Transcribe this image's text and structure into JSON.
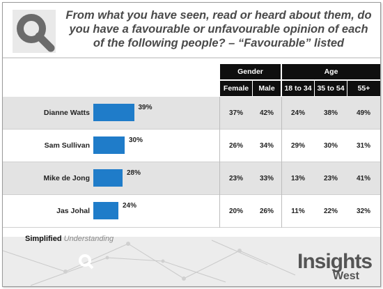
{
  "header": {
    "question": "From what you have seen, read or heard about them, do you have a favourable or unfavourable opinion of each of the following people? – “Favourable” listed"
  },
  "columns": {
    "gender_label": "Gender",
    "age_label": "Age",
    "female": "Female",
    "male": "Male",
    "age_18_34": "18 to 34",
    "age_35_54": "35 to 54",
    "age_55": "55+"
  },
  "chart_data": {
    "type": "bar",
    "orientation": "horizontal",
    "categories": [
      "Dianne Watts",
      "Sam Sullivan",
      "Mike de Jong",
      "Jas Johal"
    ],
    "values": [
      39,
      30,
      28,
      24
    ],
    "value_labels": [
      "39%",
      "30%",
      "28%",
      "24%"
    ],
    "xlim": [
      0,
      100
    ],
    "bar_color": "#1f7cc9",
    "breakdown_table": {
      "columns": [
        "Female",
        "Male",
        "18 to 34",
        "35 to 54",
        "55+"
      ],
      "groups": [
        {
          "name": "Gender",
          "columns": [
            "Female",
            "Male"
          ]
        },
        {
          "name": "Age",
          "columns": [
            "18 to 34",
            "35 to 54",
            "55+"
          ]
        }
      ],
      "rows": [
        [
          "37%",
          "42%",
          "24%",
          "38%",
          "49%"
        ],
        [
          "26%",
          "34%",
          "29%",
          "30%",
          "31%"
        ],
        [
          "23%",
          "33%",
          "13%",
          "23%",
          "41%"
        ],
        [
          "20%",
          "26%",
          "11%",
          "22%",
          "32%"
        ]
      ]
    }
  },
  "footer": {
    "simplified": "Simplified",
    "understanding": "Understanding",
    "brand_main": "Insights",
    "brand_sub": "West"
  },
  "colors": {
    "bar": "#1f7cc9",
    "header_black": "#0f0f0f",
    "shaded_row": "#e3e3e3",
    "logo_gray": "#6b6b6b"
  }
}
